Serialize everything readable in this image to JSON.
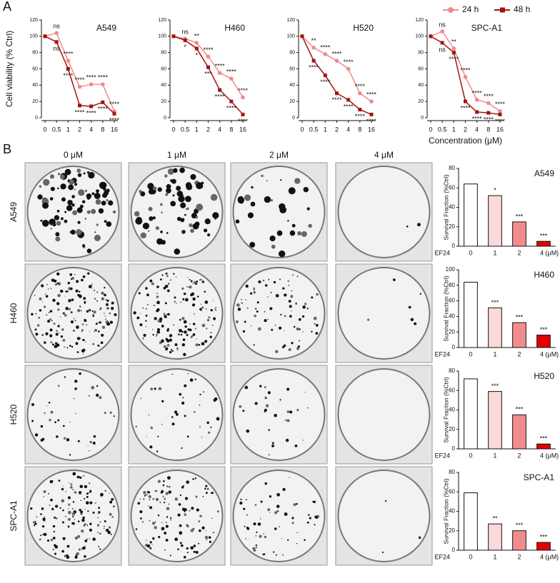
{
  "panel_labels": [
    "A",
    "B"
  ],
  "plate_columns": [
    "0 μM",
    "1 μM",
    "2 μM",
    "4 μM"
  ],
  "plate_rows": [
    "A549",
    "H460",
    "H520",
    "SPC-A1"
  ],
  "chart_data": [
    {
      "type": "line",
      "title": "A549",
      "ylabel": "Cell viability (% Ctrl)",
      "categories": [
        "0",
        "0.5",
        "1",
        "2",
        "4",
        "8",
        "16"
      ],
      "ylim": [
        0,
        120
      ],
      "yticks": [
        0,
        20,
        40,
        60,
        80,
        100,
        120
      ],
      "series": [
        {
          "name": "24 h",
          "color": "#f08a8a",
          "marker": "circle",
          "values": [
            100,
            104,
            70,
            38,
            41,
            41,
            8
          ],
          "significance": [
            null,
            "ns",
            "****",
            "****",
            "****",
            "****",
            "****"
          ]
        },
        {
          "name": "48 h",
          "color": "#a01414",
          "marker": "square",
          "values": [
            100,
            93,
            60,
            15,
            14,
            19,
            5
          ],
          "significance": [
            null,
            "ns",
            "****",
            "****",
            "****",
            "****",
            "****"
          ]
        }
      ]
    },
    {
      "type": "line",
      "title": "H460",
      "categories": [
        "0",
        "0.5",
        "1",
        "2",
        "4",
        "8",
        "16"
      ],
      "ylim": [
        0,
        120
      ],
      "yticks": [
        0,
        20,
        40,
        60,
        80,
        100,
        120
      ],
      "series": [
        {
          "name": "24 h",
          "color": "#f08a8a",
          "marker": "circle",
          "values": [
            100,
            97,
            92,
            75,
            55,
            48,
            25
          ],
          "significance": [
            null,
            "ns",
            "**",
            "****",
            "****",
            "****",
            "****"
          ]
        },
        {
          "name": "48 h",
          "color": "#a01414",
          "marker": "square",
          "values": [
            100,
            95,
            85,
            62,
            34,
            20,
            4
          ],
          "significance": [
            null,
            "*",
            "*",
            "***",
            "****",
            "****",
            "****"
          ]
        }
      ]
    },
    {
      "type": "line",
      "title": "H520",
      "categories": [
        "0",
        "0.5",
        "1",
        "2",
        "4",
        "8",
        "16"
      ],
      "ylim": [
        0,
        120
      ],
      "yticks": [
        0,
        20,
        40,
        60,
        80,
        100,
        120
      ],
      "series": [
        {
          "name": "24 h",
          "color": "#f08a8a",
          "marker": "circle",
          "values": [
            100,
            86,
            78,
            70,
            60,
            30,
            20
          ],
          "significance": [
            null,
            "**",
            "****",
            "****",
            "****",
            "****",
            "****"
          ]
        },
        {
          "name": "48 h",
          "color": "#a01414",
          "marker": "square",
          "values": [
            100,
            70,
            52,
            30,
            22,
            10,
            4
          ],
          "significance": [
            null,
            "****",
            "****",
            "****",
            "****",
            "****",
            "****"
          ]
        }
      ]
    },
    {
      "type": "line",
      "title": "SPC-A1",
      "xlabel": "Concentration (μM)",
      "legend": true,
      "categories": [
        "0",
        "0.5",
        "1",
        "2",
        "4",
        "8",
        "16"
      ],
      "ylim": [
        0,
        120
      ],
      "yticks": [
        0,
        20,
        40,
        60,
        80,
        100,
        120
      ],
      "series": [
        {
          "name": "24 h",
          "color": "#f08a8a",
          "marker": "circle",
          "values": [
            100,
            106,
            85,
            50,
            22,
            18,
            8
          ],
          "significance": [
            null,
            "ns",
            "**",
            "****",
            "****",
            "****",
            "****"
          ]
        },
        {
          "name": "48 h",
          "color": "#a01414",
          "marker": "square",
          "values": [
            100,
            92,
            80,
            20,
            7,
            6,
            4
          ],
          "significance": [
            null,
            "ns",
            "****",
            "****",
            "****",
            "****",
            "****"
          ]
        }
      ]
    },
    {
      "type": "bar",
      "title": "A549",
      "ylabel": "Survival Fraction (%Ctrl)",
      "xlabel": "EF24",
      "categories": [
        "0",
        "1",
        "2",
        "4 (μM)"
      ],
      "colors": [
        "#ffffff",
        "#fcd9d9",
        "#f28c8c",
        "#e30000"
      ],
      "ylim": [
        0,
        80
      ],
      "yticks": [
        0,
        20,
        40,
        60,
        80
      ],
      "values": [
        64,
        52,
        25,
        5
      ],
      "significance": [
        null,
        "*",
        "***",
        "***"
      ]
    },
    {
      "type": "bar",
      "title": "H460",
      "ylabel": "Survival Fraction (%Ctrl)",
      "xlabel": "EF24",
      "categories": [
        "0",
        "1",
        "2",
        "4 (μM)"
      ],
      "colors": [
        "#ffffff",
        "#fcd9d9",
        "#f28c8c",
        "#e30000"
      ],
      "ylim": [
        0,
        100
      ],
      "yticks": [
        0,
        20,
        40,
        60,
        80,
        100
      ],
      "values": [
        84,
        51,
        32,
        16
      ],
      "significance": [
        null,
        "***",
        "***",
        "***"
      ]
    },
    {
      "type": "bar",
      "title": "H520",
      "ylabel": "Survival Fraction (%Ctrl)",
      "xlabel": "EF24",
      "categories": [
        "0",
        "1",
        "2",
        "4 (μM)"
      ],
      "colors": [
        "#ffffff",
        "#fcd9d9",
        "#f28c8c",
        "#e30000"
      ],
      "ylim": [
        0,
        80
      ],
      "yticks": [
        0,
        20,
        40,
        60,
        80
      ],
      "values": [
        72,
        59,
        35,
        5
      ],
      "significance": [
        null,
        "***",
        "***",
        "***"
      ]
    },
    {
      "type": "bar",
      "title": "SPC-A1",
      "ylabel": "Survival Fraction (%Ctrl)",
      "xlabel": "EF24",
      "categories": [
        "0",
        "1",
        "2",
        "4 (μM)"
      ],
      "colors": [
        "#ffffff",
        "#fcd9d9",
        "#f28c8c",
        "#e30000"
      ],
      "ylim": [
        0,
        80
      ],
      "yticks": [
        0,
        20,
        40,
        60,
        80
      ],
      "values": [
        59,
        27,
        20,
        8
      ],
      "significance": [
        null,
        "**",
        "***",
        "***"
      ]
    }
  ]
}
